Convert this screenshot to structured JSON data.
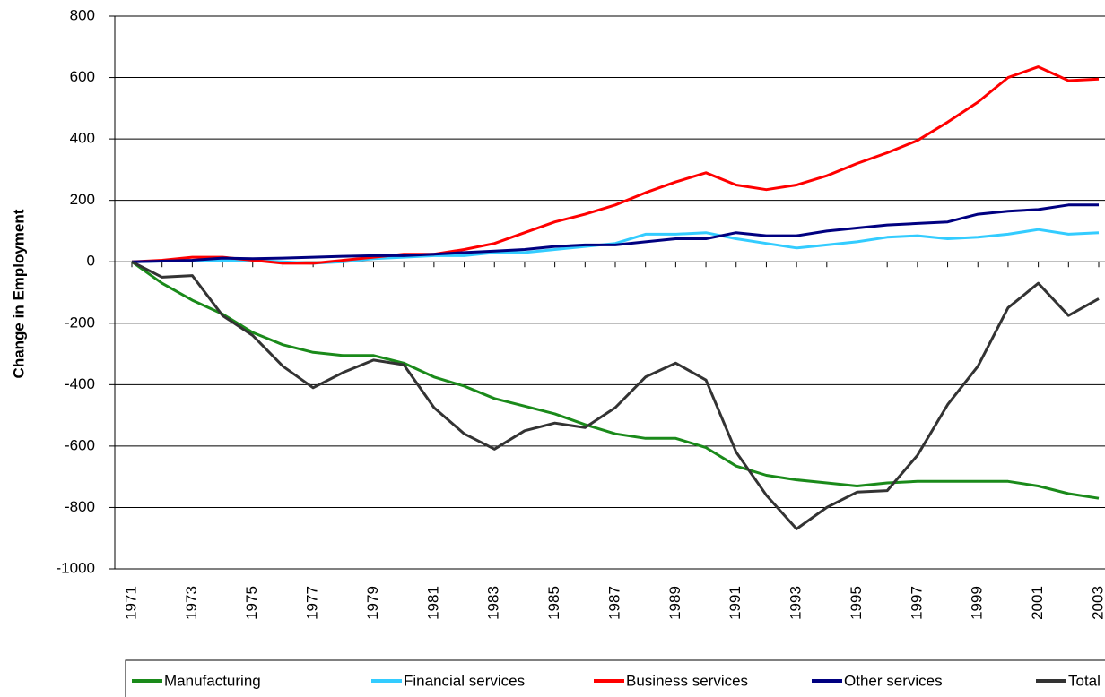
{
  "chart_data": {
    "type": "line",
    "y_label": "Change in Employment",
    "categories": [
      "1971",
      null,
      "1973",
      null,
      "1975",
      null,
      "1977",
      null,
      "1979",
      null,
      "1981",
      null,
      "1983",
      null,
      "1985",
      null,
      "1987",
      null,
      "1989",
      null,
      "1991",
      null,
      "1993",
      null,
      "1995",
      null,
      "1997",
      null,
      "1999",
      null,
      "2001",
      null,
      "2003"
    ],
    "series": [
      {
        "name": "Manufacturing",
        "color": "#1a8a1a",
        "values": [
          0,
          -70,
          -125,
          -170,
          -230,
          -270,
          -295,
          -305,
          -305,
          -330,
          -375,
          -405,
          -445,
          -470,
          -495,
          -530,
          -560,
          -575,
          -575,
          -605,
          -665,
          -695,
          -710,
          -720,
          -730,
          -720,
          -715,
          -715,
          -715,
          -715,
          -730,
          -755,
          -770
        ]
      },
      {
        "name": "Financial services",
        "color": "#33ccff",
        "values": [
          0,
          2,
          3,
          5,
          5,
          0,
          -5,
          0,
          10,
          15,
          20,
          20,
          30,
          30,
          40,
          50,
          60,
          90,
          90,
          95,
          75,
          60,
          45,
          55,
          65,
          80,
          85,
          75,
          80,
          90,
          105,
          90,
          95
        ]
      },
      {
        "name": "Business services",
        "color": "#ff0000",
        "values": [
          0,
          5,
          15,
          15,
          5,
          -5,
          -5,
          5,
          15,
          25,
          25,
          40,
          60,
          95,
          130,
          155,
          185,
          225,
          260,
          290,
          250,
          235,
          250,
          280,
          320,
          355,
          395,
          455,
          520,
          600,
          635,
          590,
          595
        ]
      },
      {
        "name": "Other services",
        "color": "#000080",
        "values": [
          0,
          2,
          5,
          12,
          10,
          12,
          15,
          18,
          20,
          20,
          25,
          30,
          35,
          40,
          50,
          55,
          55,
          65,
          75,
          75,
          95,
          85,
          85,
          100,
          110,
          120,
          125,
          130,
          155,
          165,
          170,
          185,
          185
        ]
      },
      {
        "name": "Total",
        "color": "#333333",
        "values": [
          0,
          -50,
          -45,
          -175,
          -240,
          -340,
          -410,
          -360,
          -320,
          -335,
          -475,
          -560,
          -610,
          -550,
          -525,
          -540,
          -475,
          -375,
          -330,
          -385,
          -620,
          -760,
          -870,
          -800,
          -750,
          -745,
          -630,
          -465,
          -340,
          -150,
          -70,
          -175,
          -120
        ]
      }
    ],
    "ylim": [
      -1000,
      800
    ],
    "yticks": [
      -1000,
      -800,
      -600,
      -400,
      -200,
      0,
      200,
      400,
      600,
      800
    ],
    "grid": true,
    "legend": "bottom"
  }
}
